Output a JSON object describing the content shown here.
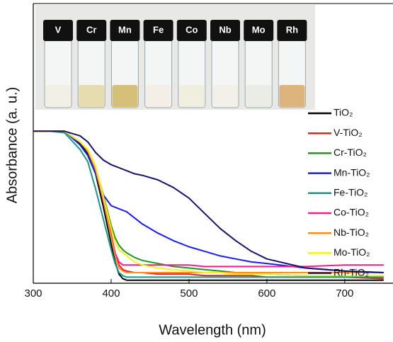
{
  "chart_data": {
    "type": "line",
    "xlabel": "Wavelength (nm)",
    "ylabel": "Absorbance (a. u.)",
    "x": [
      300,
      320,
      340,
      360,
      370,
      380,
      390,
      400,
      405,
      410,
      415,
      420,
      430,
      440,
      460,
      480,
      500,
      520,
      540,
      560,
      580,
      600,
      650,
      700,
      750
    ],
    "xlim": [
      300,
      762
    ],
    "xticks": [
      300,
      400,
      500,
      600,
      700
    ],
    "ylim": [
      0,
      1.84
    ],
    "series": [
      {
        "name": "TiO₂",
        "color": "#000000",
        "values": [
          1.0,
          1.0,
          1.0,
          0.92,
          0.85,
          0.72,
          0.5,
          0.26,
          0.14,
          0.06,
          0.03,
          0.02,
          0.02,
          0.02,
          0.02,
          0.02,
          0.02,
          0.02,
          0.02,
          0.02,
          0.02,
          0.02,
          0.02,
          0.02,
          0.02
        ]
      },
      {
        "name": "V-TiO₂",
        "color": "#ff1a1a",
        "values": [
          1.0,
          1.0,
          1.0,
          0.93,
          0.87,
          0.75,
          0.55,
          0.32,
          0.2,
          0.12,
          0.09,
          0.08,
          0.07,
          0.07,
          0.06,
          0.06,
          0.06,
          0.05,
          0.05,
          0.05,
          0.05,
          0.04,
          0.04,
          0.04,
          0.03
        ]
      },
      {
        "name": "Cr-TiO₂",
        "color": "#1a9a1a",
        "values": [
          1.0,
          1.0,
          1.0,
          0.93,
          0.87,
          0.76,
          0.58,
          0.38,
          0.3,
          0.25,
          0.22,
          0.2,
          0.17,
          0.15,
          0.13,
          0.11,
          0.1,
          0.09,
          0.08,
          0.07,
          0.06,
          0.06,
          0.05,
          0.04,
          0.04
        ]
      },
      {
        "name": "Mn-TiO₂",
        "color": "#1a1aff",
        "values": [
          1.0,
          1.0,
          1.0,
          0.91,
          0.84,
          0.72,
          0.58,
          0.51,
          0.5,
          0.49,
          0.48,
          0.47,
          0.43,
          0.39,
          0.33,
          0.28,
          0.24,
          0.21,
          0.18,
          0.16,
          0.14,
          0.13,
          0.1,
          0.08,
          0.07
        ]
      },
      {
        "name": "Fe-TiO₂",
        "color": "#109a8a",
        "values": [
          1.0,
          1.0,
          0.99,
          0.88,
          0.8,
          0.62,
          0.42,
          0.22,
          0.13,
          0.07,
          0.05,
          0.04,
          0.04,
          0.04,
          0.04,
          0.04,
          0.04,
          0.04,
          0.04,
          0.04,
          0.04,
          0.04,
          0.04,
          0.04,
          0.04
        ]
      },
      {
        "name": "Co-TiO₂",
        "color": "#ff1a8c",
        "values": [
          1.0,
          1.0,
          1.0,
          0.93,
          0.87,
          0.75,
          0.54,
          0.31,
          0.2,
          0.14,
          0.12,
          0.12,
          0.12,
          0.12,
          0.12,
          0.12,
          0.12,
          0.11,
          0.11,
          0.11,
          0.11,
          0.11,
          0.11,
          0.12,
          0.12
        ]
      },
      {
        "name": "Nb-TiO₂",
        "color": "#ff8c1a",
        "values": [
          1.0,
          1.0,
          1.0,
          0.93,
          0.87,
          0.75,
          0.55,
          0.3,
          0.18,
          0.1,
          0.08,
          0.07,
          0.07,
          0.07,
          0.07,
          0.07,
          0.07,
          0.07,
          0.07,
          0.07,
          0.07,
          0.07,
          0.07,
          0.07,
          0.07
        ]
      },
      {
        "name": "Mo-TiO₂",
        "color": "#f5f01a",
        "values": [
          1.0,
          1.0,
          1.0,
          0.93,
          0.88,
          0.77,
          0.57,
          0.36,
          0.27,
          0.22,
          0.2,
          0.18,
          0.14,
          0.12,
          0.1,
          0.09,
          0.08,
          0.07,
          0.07,
          0.06,
          0.06,
          0.06,
          0.05,
          0.05,
          0.05
        ]
      },
      {
        "name": "Rh-TiO₂",
        "color": "#14146e",
        "values": [
          1.0,
          1.0,
          1.0,
          0.97,
          0.93,
          0.86,
          0.81,
          0.78,
          0.77,
          0.76,
          0.75,
          0.74,
          0.72,
          0.71,
          0.68,
          0.63,
          0.56,
          0.46,
          0.36,
          0.28,
          0.21,
          0.16,
          0.1,
          0.08,
          0.07
        ]
      }
    ],
    "inset": {
      "labels": [
        "V",
        "Cr",
        "Mn",
        "Fe",
        "Co",
        "Nb",
        "Mo",
        "Rh"
      ]
    }
  }
}
